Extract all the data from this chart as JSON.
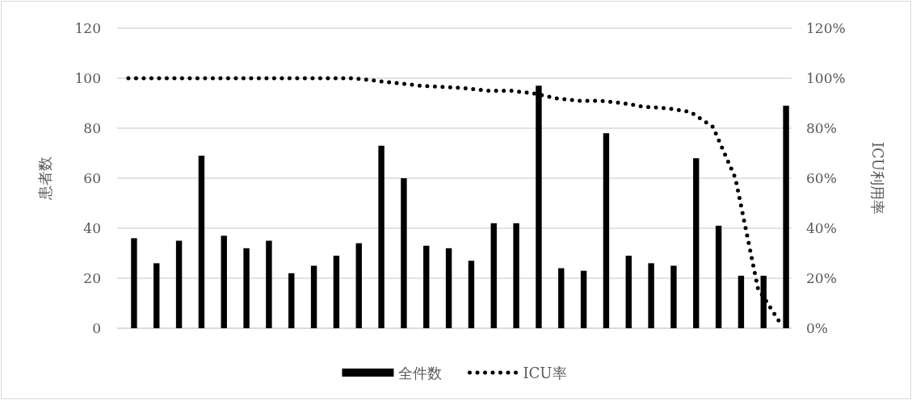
{
  "chart_data": {
    "type": "bar",
    "categories": [
      null,
      null,
      null,
      null,
      null,
      null,
      null,
      null,
      null,
      null,
      null,
      null,
      null,
      null,
      null,
      null,
      null,
      null,
      null,
      null,
      null,
      null,
      null,
      null,
      null,
      null,
      null,
      null,
      null,
      null
    ],
    "series": [
      {
        "name": "全件数",
        "color": "#000000",
        "values": [
          36,
          26,
          35,
          69,
          37,
          32,
          35,
          22,
          25,
          29,
          34,
          73,
          60,
          33,
          32,
          27,
          42,
          42,
          97,
          24,
          23,
          78,
          29,
          26,
          25,
          68,
          41,
          21,
          21,
          89
        ]
      },
      {
        "name": "ICU率",
        "type": "line",
        "axis": "y2",
        "color": "#000000",
        "line_style": "dotted",
        "values": [
          100,
          100,
          100,
          100,
          100,
          100,
          100,
          100,
          100,
          100,
          100,
          99,
          98,
          97,
          96.5,
          96,
          95,
          95,
          94,
          92,
          91,
          91,
          90,
          88.5,
          88,
          86.5,
          80.5,
          60,
          16,
          2
        ]
      }
    ],
    "ylim": [
      0,
      120
    ],
    "yticks": [
      0,
      20,
      40,
      60,
      80,
      100,
      120
    ],
    "y2lim": [
      0,
      120
    ],
    "y2ticks": [
      {
        "value": 0,
        "label": "0%"
      },
      {
        "value": 20,
        "label": "20%"
      },
      {
        "value": 40,
        "label": "40%"
      },
      {
        "value": 60,
        "label": "60%"
      },
      {
        "value": 80,
        "label": "80%"
      },
      {
        "value": 100,
        "label": "100%"
      },
      {
        "value": 120,
        "label": "120%"
      }
    ],
    "ylabel": "患者数",
    "y2label": "ICU利用率",
    "grid": "y",
    "legend": "bottom"
  }
}
